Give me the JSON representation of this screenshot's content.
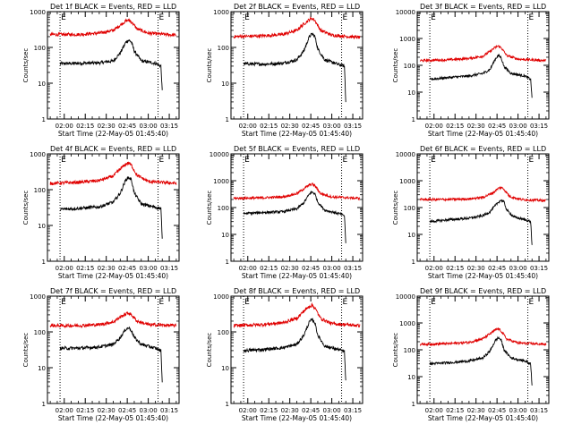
{
  "figure": {
    "colors": {
      "events": "#000000",
      "lld": "#e00000",
      "axis": "#000000",
      "marker": "#000000"
    }
  },
  "chart_data": [
    {
      "type": "line",
      "title": "Det 1f BLACK = Events, RED = LLD",
      "xlabel": "Start Time (22-May-05 01:45:40)",
      "ylabel": "Counts/sec",
      "y_scale": "log",
      "xlim": [
        "01:48",
        "03:22"
      ],
      "ylim": [
        1,
        1000
      ],
      "x_ticks": [
        "02:00",
        "02:15",
        "02:30",
        "02:45",
        "03:00",
        "03:15"
      ],
      "y_ticks": [
        "1",
        "10",
        "100",
        "1000"
      ],
      "markers": [
        {
          "x": "01:57",
          "label": "E"
        },
        {
          "x": "03:07",
          "label": "E"
        }
      ],
      "grid": false,
      "series": [
        {
          "name": "Events",
          "color": "#000000",
          "x": [
            "01:57",
            "02:10",
            "02:25",
            "02:35",
            "02:40",
            "02:44",
            "02:46",
            "02:48",
            "02:50",
            "02:55",
            "03:05",
            "03:09",
            "03:10"
          ],
          "values": [
            35,
            36,
            37,
            42,
            70,
            140,
            160,
            140,
            80,
            42,
            36,
            30,
            6
          ]
        },
        {
          "name": "LLD",
          "color": "#e00000",
          "x": [
            "01:50",
            "02:10",
            "02:25",
            "02:35",
            "02:40",
            "02:44",
            "02:46",
            "02:48",
            "02:52",
            "03:00",
            "03:20"
          ],
          "values": [
            230,
            230,
            250,
            300,
            420,
            550,
            580,
            520,
            330,
            250,
            220
          ]
        }
      ]
    },
    {
      "type": "line",
      "title": "Det 2f BLACK = Events, RED = LLD",
      "xlabel": "Start Time (22-May-05 01:45:40)",
      "ylabel": "Counts/sec",
      "y_scale": "log",
      "xlim": [
        "01:48",
        "03:22"
      ],
      "ylim": [
        1,
        1000
      ],
      "x_ticks": [
        "02:00",
        "02:15",
        "02:30",
        "02:45",
        "03:00",
        "03:15"
      ],
      "y_ticks": [
        "1",
        "10",
        "100",
        "1000"
      ],
      "markers": [
        {
          "x": "01:57",
          "label": "E"
        },
        {
          "x": "03:07",
          "label": "E"
        }
      ],
      "grid": false,
      "series": [
        {
          "name": "Events",
          "color": "#000000",
          "x": [
            "01:57",
            "02:10",
            "02:25",
            "02:35",
            "02:40",
            "02:44",
            "02:46",
            "02:48",
            "02:50",
            "02:55",
            "03:05",
            "03:09",
            "03:10"
          ],
          "values": [
            35,
            34,
            36,
            45,
            80,
            200,
            240,
            200,
            90,
            45,
            33,
            30,
            3
          ]
        },
        {
          "name": "LLD",
          "color": "#e00000",
          "x": [
            "01:50",
            "02:10",
            "02:25",
            "02:35",
            "02:40",
            "02:44",
            "02:46",
            "02:48",
            "02:52",
            "03:00",
            "03:20"
          ],
          "values": [
            200,
            210,
            230,
            300,
            450,
            600,
            650,
            560,
            300,
            220,
            190
          ]
        }
      ]
    },
    {
      "type": "line",
      "title": "Det 3f BLACK = Events, RED = LLD",
      "xlabel": "Start Time (22-May-05 01:45:40)",
      "ylabel": "Counts/sec",
      "y_scale": "log",
      "xlim": [
        "01:48",
        "03:22"
      ],
      "ylim": [
        1,
        10000
      ],
      "x_ticks": [
        "02:00",
        "02:15",
        "02:30",
        "02:45",
        "03:00",
        "03:15"
      ],
      "y_ticks": [
        "1",
        "10",
        "100",
        "1000",
        "10000"
      ],
      "markers": [
        {
          "x": "01:57",
          "label": "E"
        },
        {
          "x": "03:07",
          "label": "E"
        }
      ],
      "grid": false,
      "series": [
        {
          "name": "Events",
          "color": "#000000",
          "x": [
            "01:57",
            "02:10",
            "02:25",
            "02:35",
            "02:40",
            "02:44",
            "02:46",
            "02:48",
            "02:50",
            "02:55",
            "03:05",
            "03:09",
            "03:10"
          ],
          "values": [
            30,
            35,
            40,
            50,
            70,
            180,
            230,
            190,
            90,
            50,
            40,
            30,
            6
          ]
        },
        {
          "name": "LLD",
          "color": "#e00000",
          "x": [
            "01:50",
            "02:10",
            "02:25",
            "02:35",
            "02:40",
            "02:44",
            "02:46",
            "02:48",
            "02:52",
            "03:00",
            "03:20"
          ],
          "values": [
            150,
            160,
            180,
            220,
            330,
            480,
            520,
            450,
            230,
            170,
            150
          ]
        }
      ]
    },
    {
      "type": "line",
      "title": "Det 4f BLACK = Events, RED = LLD",
      "xlabel": "Start Time (22-May-05 01:45:40)",
      "ylabel": "Counts/sec",
      "y_scale": "log",
      "xlim": [
        "01:48",
        "03:22"
      ],
      "ylim": [
        1,
        1000
      ],
      "x_ticks": [
        "02:00",
        "02:15",
        "02:30",
        "02:45",
        "03:00",
        "03:15"
      ],
      "y_ticks": [
        "1",
        "10",
        "100",
        "1000"
      ],
      "markers": [
        {
          "x": "01:57",
          "label": "E"
        },
        {
          "x": "03:07",
          "label": "E"
        }
      ],
      "grid": false,
      "series": [
        {
          "name": "Events",
          "color": "#000000",
          "x": [
            "01:57",
            "02:10",
            "02:25",
            "02:35",
            "02:40",
            "02:44",
            "02:46",
            "02:48",
            "02:50",
            "02:55",
            "03:05",
            "03:09",
            "03:10"
          ],
          "values": [
            28,
            30,
            33,
            45,
            80,
            190,
            220,
            190,
            80,
            40,
            32,
            30,
            4
          ]
        },
        {
          "name": "LLD",
          "color": "#e00000",
          "x": [
            "01:50",
            "02:10",
            "02:25",
            "02:35",
            "02:40",
            "02:44",
            "02:46",
            "02:48",
            "02:52",
            "03:00",
            "03:20"
          ],
          "values": [
            150,
            160,
            180,
            240,
            380,
            520,
            560,
            480,
            250,
            170,
            150
          ]
        }
      ]
    },
    {
      "type": "line",
      "title": "Det 5f BLACK = Events, RED = LLD",
      "xlabel": "Start Time (22-May-05 01:45:40)",
      "ylabel": "Counts/sec",
      "y_scale": "log",
      "xlim": [
        "01:48",
        "03:22"
      ],
      "ylim": [
        1,
        10000
      ],
      "x_ticks": [
        "02:00",
        "02:15",
        "02:30",
        "02:45",
        "03:00",
        "03:15"
      ],
      "y_ticks": [
        "1",
        "10",
        "100",
        "1000",
        "10000"
      ],
      "markers": [
        {
          "x": "01:57",
          "label": "E"
        },
        {
          "x": "03:07",
          "label": "E"
        }
      ],
      "grid": false,
      "series": [
        {
          "name": "Events",
          "color": "#000000",
          "x": [
            "01:57",
            "02:10",
            "02:25",
            "02:35",
            "02:40",
            "02:44",
            "02:46",
            "02:48",
            "02:50",
            "02:55",
            "03:05",
            "03:09",
            "03:10"
          ],
          "values": [
            60,
            65,
            70,
            90,
            150,
            320,
            380,
            320,
            160,
            80,
            60,
            50,
            5
          ]
        },
        {
          "name": "LLD",
          "color": "#e00000",
          "x": [
            "01:50",
            "02:10",
            "02:25",
            "02:35",
            "02:40",
            "02:44",
            "02:46",
            "02:48",
            "02:52",
            "03:00",
            "03:20"
          ],
          "values": [
            220,
            230,
            250,
            330,
            500,
            700,
            750,
            650,
            330,
            250,
            220
          ]
        }
      ]
    },
    {
      "type": "line",
      "title": "Det 6f BLACK = Events, RED = LLD",
      "xlabel": "Start Time (22-May-05 01:45:40)",
      "ylabel": "Counts/sec",
      "y_scale": "log",
      "xlim": [
        "01:48",
        "03:22"
      ],
      "ylim": [
        1,
        10000
      ],
      "x_ticks": [
        "02:00",
        "02:15",
        "02:30",
        "02:45",
        "03:00",
        "03:15"
      ],
      "y_ticks": [
        "1",
        "10",
        "100",
        "1000",
        "10000"
      ],
      "markers": [
        {
          "x": "01:57",
          "label": "E"
        },
        {
          "x": "03:07",
          "label": "E"
        }
      ],
      "grid": false,
      "series": [
        {
          "name": "Events",
          "color": "#000000",
          "x": [
            "01:57",
            "02:10",
            "02:25",
            "02:35",
            "02:40",
            "02:46",
            "02:48",
            "02:50",
            "02:52",
            "02:57",
            "03:05",
            "03:09",
            "03:10"
          ],
          "values": [
            30,
            35,
            40,
            50,
            70,
            160,
            190,
            160,
            80,
            45,
            35,
            30,
            4
          ]
        },
        {
          "name": "LLD",
          "color": "#e00000",
          "x": [
            "01:50",
            "02:10",
            "02:25",
            "02:35",
            "02:42",
            "02:46",
            "02:48",
            "02:50",
            "02:54",
            "03:02",
            "03:20"
          ],
          "values": [
            200,
            200,
            210,
            240,
            350,
            520,
            560,
            480,
            260,
            200,
            180
          ]
        }
      ]
    },
    {
      "type": "line",
      "title": "Det 7f BLACK = Events, RED = LLD",
      "xlabel": "Start Time (22-May-05 01:45:40)",
      "ylabel": "Counts/sec",
      "y_scale": "log",
      "xlim": [
        "01:48",
        "03:22"
      ],
      "ylim": [
        1,
        1000
      ],
      "x_ticks": [
        "02:00",
        "02:15",
        "02:30",
        "02:45",
        "03:00",
        "03:15"
      ],
      "y_ticks": [
        "1",
        "10",
        "100",
        "1000"
      ],
      "markers": [
        {
          "x": "01:57",
          "label": "E"
        },
        {
          "x": "03:07",
          "label": "E"
        }
      ],
      "grid": false,
      "series": [
        {
          "name": "Events",
          "color": "#000000",
          "x": [
            "01:57",
            "02:10",
            "02:25",
            "02:35",
            "02:40",
            "02:44",
            "02:46",
            "02:48",
            "02:50",
            "02:55",
            "03:05",
            "03:09",
            "03:10"
          ],
          "values": [
            35,
            35,
            38,
            45,
            70,
            120,
            130,
            110,
            70,
            45,
            35,
            30,
            4
          ]
        },
        {
          "name": "LLD",
          "color": "#e00000",
          "x": [
            "01:50",
            "02:10",
            "02:25",
            "02:35",
            "02:40",
            "02:44",
            "02:46",
            "02:48",
            "02:52",
            "03:00",
            "03:20"
          ],
          "values": [
            150,
            150,
            160,
            190,
            260,
            320,
            340,
            300,
            200,
            160,
            150
          ]
        }
      ]
    },
    {
      "type": "line",
      "title": "Det 8f BLACK = Events, RED = LLD",
      "xlabel": "Start Time (22-May-05 01:45:40)",
      "ylabel": "Counts/sec",
      "y_scale": "log",
      "xlim": [
        "01:48",
        "03:22"
      ],
      "ylim": [
        1,
        1000
      ],
      "x_ticks": [
        "02:00",
        "02:15",
        "02:30",
        "02:45",
        "03:00",
        "03:15"
      ],
      "y_ticks": [
        "1",
        "10",
        "100",
        "1000"
      ],
      "markers": [
        {
          "x": "01:57",
          "label": "E"
        },
        {
          "x": "03:07",
          "label": "E"
        }
      ],
      "grid": false,
      "series": [
        {
          "name": "Events",
          "color": "#000000",
          "x": [
            "01:57",
            "02:10",
            "02:25",
            "02:35",
            "02:40",
            "02:44",
            "02:46",
            "02:48",
            "02:50",
            "02:55",
            "03:05",
            "03:09",
            "03:10"
          ],
          "values": [
            30,
            32,
            36,
            45,
            80,
            190,
            220,
            180,
            80,
            40,
            32,
            28,
            4
          ]
        },
        {
          "name": "LLD",
          "color": "#e00000",
          "x": [
            "01:50",
            "02:10",
            "02:25",
            "02:35",
            "02:40",
            "02:44",
            "02:46",
            "02:48",
            "02:52",
            "03:00",
            "03:20"
          ],
          "values": [
            150,
            160,
            180,
            240,
            380,
            520,
            560,
            460,
            240,
            170,
            150
          ]
        }
      ]
    },
    {
      "type": "line",
      "title": "Det 9f BLACK = Events, RED = LLD",
      "xlabel": "Start Time (22-May-05 01:45:40)",
      "ylabel": "Counts/sec",
      "y_scale": "log",
      "xlim": [
        "01:48",
        "03:22"
      ],
      "ylim": [
        1,
        10000
      ],
      "x_ticks": [
        "02:00",
        "02:15",
        "02:30",
        "02:45",
        "03:00",
        "03:15"
      ],
      "y_ticks": [
        "1",
        "10",
        "100",
        "1000",
        "10000"
      ],
      "markers": [
        {
          "x": "01:57",
          "label": "E"
        },
        {
          "x": "03:07",
          "label": "E"
        }
      ],
      "grid": false,
      "series": [
        {
          "name": "Events",
          "color": "#000000",
          "x": [
            "01:57",
            "02:10",
            "02:25",
            "02:35",
            "02:40",
            "02:44",
            "02:46",
            "02:48",
            "02:50",
            "02:55",
            "03:05",
            "03:09",
            "03:10"
          ],
          "values": [
            30,
            33,
            38,
            50,
            90,
            230,
            280,
            230,
            100,
            50,
            38,
            30,
            5
          ]
        },
        {
          "name": "LLD",
          "color": "#e00000",
          "x": [
            "01:50",
            "02:10",
            "02:25",
            "02:35",
            "02:40",
            "02:44",
            "02:46",
            "02:48",
            "02:52",
            "03:00",
            "03:20"
          ],
          "values": [
            160,
            170,
            190,
            260,
            400,
            560,
            600,
            500,
            250,
            180,
            160
          ]
        }
      ]
    }
  ]
}
